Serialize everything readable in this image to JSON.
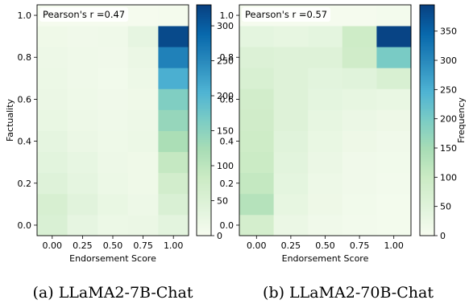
{
  "chart_data": [
    {
      "type": "heatmap",
      "caption": "(a) LLaMA2-7B-Chat",
      "annotation": "Pearson's r =0.47",
      "xlabel": "Endorsement Score",
      "ylabel": "Factuality",
      "xlim": [
        -0.125,
        1.125
      ],
      "ylim": [
        -0.05,
        1.05
      ],
      "x_ticks": [
        "0.00",
        "0.25",
        "0.50",
        "0.75",
        "1.00"
      ],
      "y_ticks": [
        "0.0",
        "0.2",
        "0.4",
        "0.6",
        "0.8",
        "1.0"
      ],
      "x_bin_edges": [
        -0.125,
        0.125,
        0.375,
        0.625,
        0.875,
        1.125
      ],
      "colormap": "GnBu",
      "colorbar_label": "",
      "colorbar_range": [
        0,
        330
      ],
      "colorbar_ticks": [
        "0",
        "50",
        "100",
        "150",
        "200",
        "250",
        "300"
      ],
      "cells": [
        {
          "x": 0.0,
          "y_range": [
            -0.05,
            0.05
          ],
          "value": 55
        },
        {
          "x": 0.25,
          "y_range": [
            -0.05,
            0.05
          ],
          "value": 30
        },
        {
          "x": 0.5,
          "y_range": [
            -0.05,
            0.05
          ],
          "value": 20
        },
        {
          "x": 0.75,
          "y_range": [
            -0.05,
            0.05
          ],
          "value": 22
        },
        {
          "x": 1.0,
          "y_range": [
            -0.05,
            0.05
          ],
          "value": 35
        },
        {
          "x": 0.0,
          "y_range": [
            0.05,
            0.15
          ],
          "value": 60
        },
        {
          "x": 0.25,
          "y_range": [
            0.05,
            0.15
          ],
          "value": 40
        },
        {
          "x": 0.5,
          "y_range": [
            0.05,
            0.15
          ],
          "value": 25
        },
        {
          "x": 0.75,
          "y_range": [
            0.05,
            0.15
          ],
          "value": 18
        },
        {
          "x": 1.0,
          "y_range": [
            0.05,
            0.15
          ],
          "value": 55
        },
        {
          "x": 0.0,
          "y_range": [
            0.15,
            0.25
          ],
          "value": 45
        },
        {
          "x": 0.25,
          "y_range": [
            0.15,
            0.25
          ],
          "value": 32
        },
        {
          "x": 0.5,
          "y_range": [
            0.15,
            0.25
          ],
          "value": 20
        },
        {
          "x": 0.75,
          "y_range": [
            0.15,
            0.25
          ],
          "value": 15
        },
        {
          "x": 1.0,
          "y_range": [
            0.15,
            0.25
          ],
          "value": 70
        },
        {
          "x": 0.0,
          "y_range": [
            0.25,
            0.35
          ],
          "value": 38
        },
        {
          "x": 0.25,
          "y_range": [
            0.25,
            0.35
          ],
          "value": 28
        },
        {
          "x": 0.5,
          "y_range": [
            0.25,
            0.35
          ],
          "value": 18
        },
        {
          "x": 0.75,
          "y_range": [
            0.25,
            0.35
          ],
          "value": 15
        },
        {
          "x": 1.0,
          "y_range": [
            0.25,
            0.35
          ],
          "value": 90
        },
        {
          "x": 0.0,
          "y_range": [
            0.35,
            0.45
          ],
          "value": 32
        },
        {
          "x": 0.25,
          "y_range": [
            0.35,
            0.45
          ],
          "value": 22
        },
        {
          "x": 0.5,
          "y_range": [
            0.35,
            0.45
          ],
          "value": 16
        },
        {
          "x": 0.75,
          "y_range": [
            0.35,
            0.45
          ],
          "value": 20
        },
        {
          "x": 1.0,
          "y_range": [
            0.35,
            0.45
          ],
          "value": 120
        },
        {
          "x": 0.0,
          "y_range": [
            0.45,
            0.55
          ],
          "value": 25
        },
        {
          "x": 0.25,
          "y_range": [
            0.45,
            0.55
          ],
          "value": 18
        },
        {
          "x": 0.5,
          "y_range": [
            0.45,
            0.55
          ],
          "value": 14
        },
        {
          "x": 0.75,
          "y_range": [
            0.45,
            0.55
          ],
          "value": 18
        },
        {
          "x": 1.0,
          "y_range": [
            0.45,
            0.55
          ],
          "value": 140
        },
        {
          "x": 0.0,
          "y_range": [
            0.55,
            0.65
          ],
          "value": 22
        },
        {
          "x": 0.25,
          "y_range": [
            0.55,
            0.65
          ],
          "value": 16
        },
        {
          "x": 0.5,
          "y_range": [
            0.55,
            0.65
          ],
          "value": 12
        },
        {
          "x": 0.75,
          "y_range": [
            0.55,
            0.65
          ],
          "value": 15
        },
        {
          "x": 1.0,
          "y_range": [
            0.55,
            0.65
          ],
          "value": 160
        },
        {
          "x": 0.0,
          "y_range": [
            0.65,
            0.75
          ],
          "value": 20
        },
        {
          "x": 0.25,
          "y_range": [
            0.65,
            0.75
          ],
          "value": 14
        },
        {
          "x": 0.5,
          "y_range": [
            0.65,
            0.75
          ],
          "value": 10
        },
        {
          "x": 0.75,
          "y_range": [
            0.65,
            0.75
          ],
          "value": 18
        },
        {
          "x": 1.0,
          "y_range": [
            0.65,
            0.75
          ],
          "value": 210
        },
        {
          "x": 0.0,
          "y_range": [
            0.75,
            0.85
          ],
          "value": 18
        },
        {
          "x": 0.25,
          "y_range": [
            0.75,
            0.85
          ],
          "value": 14
        },
        {
          "x": 0.5,
          "y_range": [
            0.75,
            0.85
          ],
          "value": 12
        },
        {
          "x": 0.75,
          "y_range": [
            0.75,
            0.85
          ],
          "value": 22
        },
        {
          "x": 1.0,
          "y_range": [
            0.75,
            0.85
          ],
          "value": 260
        },
        {
          "x": 0.0,
          "y_range": [
            0.85,
            0.95
          ],
          "value": 15
        },
        {
          "x": 0.25,
          "y_range": [
            0.85,
            0.95
          ],
          "value": 12
        },
        {
          "x": 0.5,
          "y_range": [
            0.85,
            0.95
          ],
          "value": 14
        },
        {
          "x": 0.75,
          "y_range": [
            0.85,
            0.95
          ],
          "value": 30
        },
        {
          "x": 1.0,
          "y_range": [
            0.85,
            0.95
          ],
          "value": 320
        },
        {
          "x": 0.0,
          "y_range": [
            0.95,
            1.05
          ],
          "value": 4
        },
        {
          "x": 0.25,
          "y_range": [
            0.95,
            1.05
          ],
          "value": 4
        },
        {
          "x": 0.5,
          "y_range": [
            0.95,
            1.05
          ],
          "value": 4
        },
        {
          "x": 0.75,
          "y_range": [
            0.95,
            1.05
          ],
          "value": 4
        },
        {
          "x": 1.0,
          "y_range": [
            0.95,
            1.05
          ],
          "value": 6
        }
      ]
    },
    {
      "type": "heatmap",
      "caption": "(b) LLaMA2-70B-Chat",
      "annotation": "Pearson's r =0.57",
      "xlabel": "Endorsement Score",
      "ylabel": "",
      "xlim": [
        -0.125,
        1.125
      ],
      "ylim": [
        -0.05,
        1.05
      ],
      "x_ticks": [
        "0.00",
        "0.25",
        "0.50",
        "0.75",
        "1.00"
      ],
      "y_ticks": [
        "0.0",
        "0.2",
        "0.4",
        "0.6",
        "0.8",
        "1.0"
      ],
      "x_bin_edges": [
        -0.125,
        0.125,
        0.375,
        0.625,
        0.875,
        1.125
      ],
      "colormap": "GnBu",
      "colorbar_label": "Frequency",
      "colorbar_range": [
        0,
        395
      ],
      "colorbar_ticks": [
        "0",
        "50",
        "100",
        "150",
        "200",
        "250",
        "300",
        "350"
      ],
      "cells": [
        {
          "x": 0.0,
          "y_range": [
            -0.05,
            0.05
          ],
          "value": 80
        },
        {
          "x": 0.25,
          "y_range": [
            -0.05,
            0.05
          ],
          "value": 25
        },
        {
          "x": 0.5,
          "y_range": [
            -0.05,
            0.05
          ],
          "value": 15
        },
        {
          "x": 0.75,
          "y_range": [
            -0.05,
            0.05
          ],
          "value": 10
        },
        {
          "x": 1.0,
          "y_range": [
            -0.05,
            0.05
          ],
          "value": 8
        },
        {
          "x": 0.0,
          "y_range": [
            0.05,
            0.15
          ],
          "value": 130
        },
        {
          "x": 0.25,
          "y_range": [
            0.05,
            0.15
          ],
          "value": 35
        },
        {
          "x": 0.5,
          "y_range": [
            0.05,
            0.15
          ],
          "value": 20
        },
        {
          "x": 0.75,
          "y_range": [
            0.05,
            0.15
          ],
          "value": 12
        },
        {
          "x": 1.0,
          "y_range": [
            0.05,
            0.15
          ],
          "value": 8
        },
        {
          "x": 0.0,
          "y_range": [
            0.15,
            0.25
          ],
          "value": 110
        },
        {
          "x": 0.25,
          "y_range": [
            0.15,
            0.25
          ],
          "value": 40
        },
        {
          "x": 0.5,
          "y_range": [
            0.15,
            0.25
          ],
          "value": 22
        },
        {
          "x": 0.75,
          "y_range": [
            0.15,
            0.25
          ],
          "value": 14
        },
        {
          "x": 1.0,
          "y_range": [
            0.15,
            0.25
          ],
          "value": 10
        },
        {
          "x": 0.0,
          "y_range": [
            0.25,
            0.35
          ],
          "value": 100
        },
        {
          "x": 0.25,
          "y_range": [
            0.25,
            0.35
          ],
          "value": 45
        },
        {
          "x": 0.5,
          "y_range": [
            0.25,
            0.35
          ],
          "value": 25
        },
        {
          "x": 0.75,
          "y_range": [
            0.25,
            0.35
          ],
          "value": 15
        },
        {
          "x": 1.0,
          "y_range": [
            0.25,
            0.35
          ],
          "value": 12
        },
        {
          "x": 0.0,
          "y_range": [
            0.35,
            0.45
          ],
          "value": 95
        },
        {
          "x": 0.25,
          "y_range": [
            0.35,
            0.45
          ],
          "value": 50
        },
        {
          "x": 0.5,
          "y_range": [
            0.35,
            0.45
          ],
          "value": 30
        },
        {
          "x": 0.75,
          "y_range": [
            0.35,
            0.45
          ],
          "value": 20
        },
        {
          "x": 1.0,
          "y_range": [
            0.35,
            0.45
          ],
          "value": 15
        },
        {
          "x": 0.0,
          "y_range": [
            0.45,
            0.55
          ],
          "value": 90
        },
        {
          "x": 0.25,
          "y_range": [
            0.45,
            0.55
          ],
          "value": 55
        },
        {
          "x": 0.5,
          "y_range": [
            0.45,
            0.55
          ],
          "value": 35
        },
        {
          "x": 0.75,
          "y_range": [
            0.45,
            0.55
          ],
          "value": 25
        },
        {
          "x": 1.0,
          "y_range": [
            0.45,
            0.55
          ],
          "value": 20
        },
        {
          "x": 0.0,
          "y_range": [
            0.55,
            0.65
          ],
          "value": 85
        },
        {
          "x": 0.25,
          "y_range": [
            0.55,
            0.65
          ],
          "value": 55
        },
        {
          "x": 0.5,
          "y_range": [
            0.55,
            0.65
          ],
          "value": 40
        },
        {
          "x": 0.75,
          "y_range": [
            0.55,
            0.65
          ],
          "value": 35
        },
        {
          "x": 1.0,
          "y_range": [
            0.55,
            0.65
          ],
          "value": 30
        },
        {
          "x": 0.0,
          "y_range": [
            0.65,
            0.75
          ],
          "value": 70
        },
        {
          "x": 0.25,
          "y_range": [
            0.65,
            0.75
          ],
          "value": 55
        },
        {
          "x": 0.5,
          "y_range": [
            0.65,
            0.75
          ],
          "value": 45
        },
        {
          "x": 0.75,
          "y_range": [
            0.65,
            0.75
          ],
          "value": 50
        },
        {
          "x": 1.0,
          "y_range": [
            0.65,
            0.75
          ],
          "value": 70
        },
        {
          "x": 0.0,
          "y_range": [
            0.75,
            0.85
          ],
          "value": 60
        },
        {
          "x": 0.25,
          "y_range": [
            0.75,
            0.85
          ],
          "value": 55
        },
        {
          "x": 0.5,
          "y_range": [
            0.75,
            0.85
          ],
          "value": 55
        },
        {
          "x": 0.75,
          "y_range": [
            0.75,
            0.85
          ],
          "value": 90
        },
        {
          "x": 1.0,
          "y_range": [
            0.75,
            0.85
          ],
          "value": 200
        },
        {
          "x": 0.0,
          "y_range": [
            0.85,
            0.95
          ],
          "value": 40
        },
        {
          "x": 0.25,
          "y_range": [
            0.85,
            0.95
          ],
          "value": 35
        },
        {
          "x": 0.5,
          "y_range": [
            0.85,
            0.95
          ],
          "value": 40
        },
        {
          "x": 0.75,
          "y_range": [
            0.85,
            0.95
          ],
          "value": 95
        },
        {
          "x": 1.0,
          "y_range": [
            0.85,
            0.95
          ],
          "value": 390
        },
        {
          "x": 0.0,
          "y_range": [
            0.95,
            1.05
          ],
          "value": 4
        },
        {
          "x": 0.25,
          "y_range": [
            0.95,
            1.05
          ],
          "value": 4
        },
        {
          "x": 0.5,
          "y_range": [
            0.95,
            1.05
          ],
          "value": 4
        },
        {
          "x": 0.75,
          "y_range": [
            0.95,
            1.05
          ],
          "value": 5
        },
        {
          "x": 1.0,
          "y_range": [
            0.95,
            1.05
          ],
          "value": 8
        }
      ]
    }
  ]
}
